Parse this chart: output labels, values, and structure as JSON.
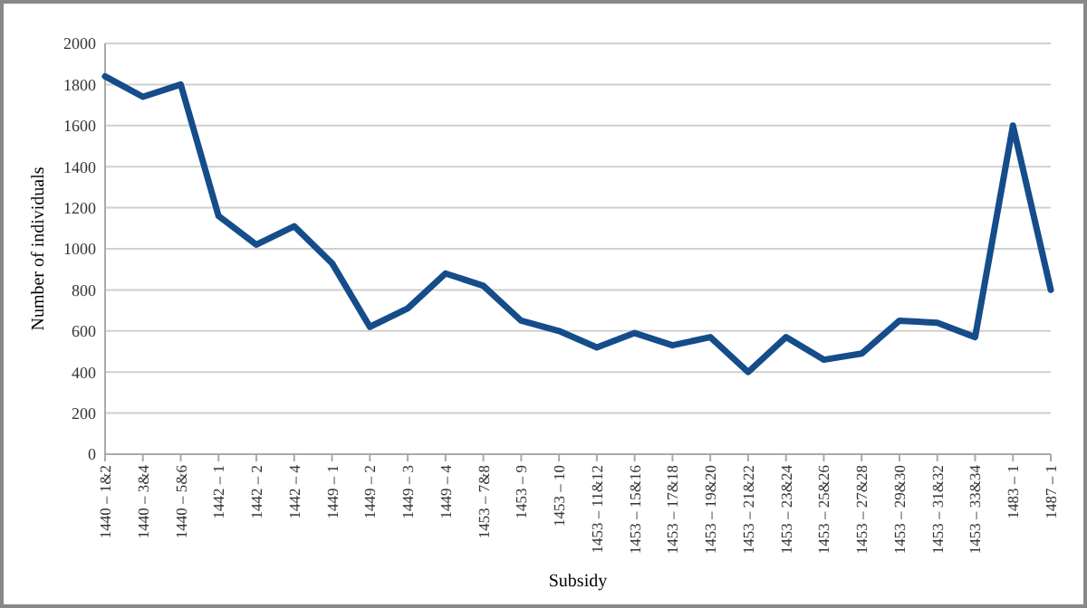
{
  "chart_data": {
    "type": "line",
    "xlabel": "Subsidy",
    "ylabel": "Number of individuals",
    "categories": [
      "1440 – 1&2",
      "1440 – 3&4",
      "1440 – 5&6",
      "1442 – 1",
      "1442 – 2",
      "1442 – 4",
      "1449 – 1",
      "1449 – 2",
      "1449 – 3",
      "1449 – 4",
      "1453 – 7&8",
      "1453 – 9",
      "1453 – 10",
      "1453 – 11&12",
      "1453 – 15&16",
      "1453 – 17&18",
      "1453 – 19&20",
      "1453 – 21&22",
      "1453 – 23&24",
      "1453 – 25&26",
      "1453 – 27&28",
      "1453 – 29&30",
      "1453 – 31&32",
      "1453 – 33&34",
      "1483 – 1",
      "1487 – 1"
    ],
    "series": [
      {
        "color": "#154c8a",
        "values": [
          1840,
          1740,
          1800,
          1160,
          1020,
          1110,
          930,
          620,
          710,
          880,
          820,
          650,
          600,
          520,
          590,
          530,
          570,
          400,
          570,
          460,
          490,
          650,
          640,
          570,
          1600,
          800
        ]
      }
    ],
    "ylim": [
      0,
      2000
    ],
    "yticks": [
      0,
      200,
      400,
      600,
      800,
      1000,
      1200,
      1400,
      1600,
      1800,
      2000
    ],
    "grid": "y",
    "marker": "none",
    "line_style": "solid"
  }
}
